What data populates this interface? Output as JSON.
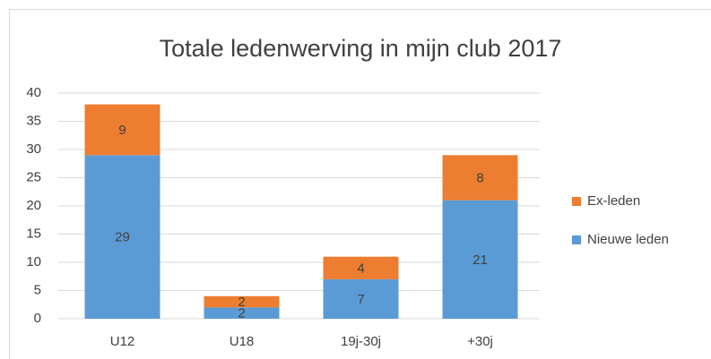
{
  "chart_data": {
    "type": "stacked_bar",
    "title": "Totale ledenwerving in mijn club 2017",
    "categories": [
      "U12",
      "U18",
      "19j-30j",
      "+30j"
    ],
    "series": [
      {
        "name": "Nieuwe leden",
        "color": "#5b9bd5",
        "values": [
          29,
          2,
          7,
          21
        ]
      },
      {
        "name": "Ex-leden",
        "color": "#ed7d31",
        "values": [
          9,
          2,
          4,
          8
        ]
      }
    ],
    "ylim": [
      0,
      40
    ],
    "yticks": [
      0,
      5,
      10,
      15,
      20,
      25,
      30,
      35,
      40
    ],
    "grid": true,
    "legend": "right"
  }
}
